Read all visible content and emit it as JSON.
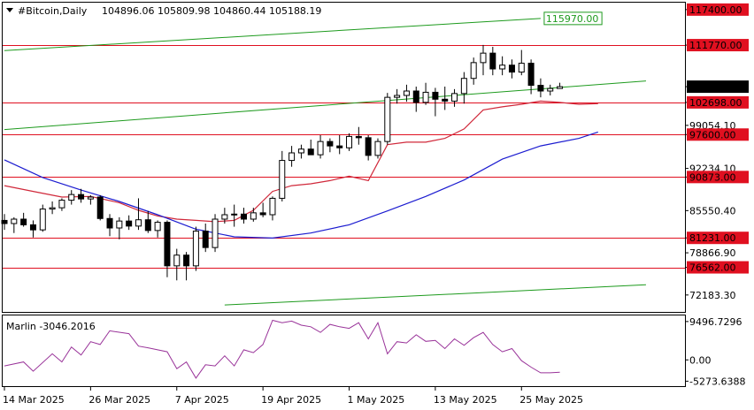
{
  "chart_data": [
    {
      "type": "candlestick",
      "title": "#Bitcoin,Daily",
      "ohlc_label": "104896.06 105809.98 104860.44 105188.19",
      "y_ticks": [
        "117400.00",
        "111770.00",
        "105188.19",
        "102698.00",
        "99054.10",
        "97600.00",
        "92234.10",
        "90873.00",
        "85550.40",
        "81231.00",
        "78866.90",
        "76562.00",
        "72183.30"
      ],
      "y_tick_values": [
        117400,
        111770,
        105188.19,
        102698,
        99054.1,
        97600,
        92234.1,
        90873,
        85550.4,
        81231,
        78866.9,
        76562,
        72183.3
      ],
      "ylim": [
        69500,
        118500
      ],
      "x_ticks": [
        "14 Mar 2025",
        "26 Mar 2025",
        "7 Apr 2025",
        "19 Apr 2025",
        "1 May 2025",
        "13 May 2025",
        "25 May 2025"
      ],
      "x_tick_index": [
        0,
        9,
        18,
        27,
        36,
        45,
        54
      ],
      "last_price": "105188.19",
      "horizontal_levels": [
        {
          "value": 111770,
          "label": "111770.00"
        },
        {
          "value": 102698,
          "label": "102698.00"
        },
        {
          "value": 97600,
          "label": "97600.00"
        },
        {
          "value": 90873,
          "label": "90873.00"
        },
        {
          "value": 81231,
          "label": "81231.00"
        },
        {
          "value": 76562,
          "label": "76562.00"
        }
      ],
      "channel_lines": [
        {
          "label": "115970.00",
          "start_index": 0,
          "start_value": 110900,
          "end_index": 56,
          "end_value": 116000
        },
        {
          "label": "",
          "start_index": 0,
          "start_value": 98400,
          "end_index": 67,
          "end_value": 106100
        },
        {
          "label": "",
          "start_index": 23,
          "start_value": 70600,
          "end_index": 67,
          "end_value": 73800
        }
      ],
      "series": [
        {
          "name": "",
          "color": "#d0283a",
          "points": [
            [
              0,
              89500
            ],
            [
              3,
              88600
            ],
            [
              6,
              87700
            ],
            [
              9,
              87800
            ],
            [
              12,
              86800
            ],
            [
              14,
              85600
            ],
            [
              16,
              84700
            ],
            [
              18,
              84200
            ],
            [
              20,
              84000
            ],
            [
              22,
              83800
            ],
            [
              24,
              84000
            ],
            [
              26,
              85600
            ],
            [
              28,
              88600
            ],
            [
              30,
              89500
            ],
            [
              32,
              89800
            ],
            [
              34,
              90300
            ],
            [
              36,
              91000
            ],
            [
              38,
              90300
            ],
            [
              40,
              96000
            ],
            [
              42,
              96400
            ],
            [
              44,
              96400
            ],
            [
              46,
              97000
            ],
            [
              48,
              98500
            ],
            [
              50,
              101500
            ],
            [
              52,
              102000
            ],
            [
              54,
              102400
            ],
            [
              56,
              102900
            ],
            [
              58,
              102700
            ],
            [
              60,
              102400
            ],
            [
              62,
              102500
            ]
          ]
        },
        {
          "name": "",
          "color": "#1c1cd0",
          "points": [
            [
              0,
              93600
            ],
            [
              4,
              90800
            ],
            [
              8,
              88800
            ],
            [
              12,
              87000
            ],
            [
              16,
              84900
            ],
            [
              20,
              82600
            ],
            [
              24,
              81400
            ],
            [
              28,
              81200
            ],
            [
              32,
              82000
            ],
            [
              36,
              83300
            ],
            [
              40,
              85500
            ],
            [
              44,
              87800
            ],
            [
              48,
              90400
            ],
            [
              52,
              93700
            ],
            [
              56,
              95800
            ],
            [
              60,
              97000
            ],
            [
              62,
              98000
            ]
          ]
        }
      ],
      "candles": [
        [
          84000,
          85000,
          82500,
          83500
        ],
        [
          83500,
          84500,
          82000,
          84200
        ],
        [
          84200,
          85200,
          83000,
          83300
        ],
        [
          83300,
          84000,
          81300,
          82500
        ],
        [
          82500,
          86500,
          82200,
          85800
        ],
        [
          85800,
          87000,
          85000,
          86000
        ],
        [
          86000,
          87500,
          85500,
          87200
        ],
        [
          87200,
          88800,
          86500,
          88100
        ],
        [
          88100,
          89000,
          86800,
          87400
        ],
        [
          87400,
          88000,
          86500,
          87700
        ],
        [
          87700,
          88000,
          84000,
          84300
        ],
        [
          84300,
          85000,
          81500,
          82800
        ],
        [
          82800,
          84500,
          81000,
          83900
        ],
        [
          83900,
          84800,
          82500,
          83100
        ],
        [
          83100,
          87500,
          82500,
          84100
        ],
        [
          84100,
          85500,
          82000,
          82400
        ],
        [
          82400,
          84000,
          81300,
          83700
        ],
        [
          83700,
          84000,
          75000,
          76800
        ],
        [
          76800,
          79500,
          74500,
          78500
        ],
        [
          78500,
          79000,
          74500,
          76800
        ],
        [
          76800,
          83000,
          76000,
          82300
        ],
        [
          82300,
          83500,
          79000,
          79700
        ],
        [
          79700,
          85000,
          79000,
          84200
        ],
        [
          84200,
          86000,
          83500,
          84900
        ],
        [
          84900,
          86500,
          83000,
          85000
        ],
        [
          85000,
          86000,
          83500,
          84200
        ],
        [
          84200,
          86000,
          83800,
          85200
        ],
        [
          85200,
          86800,
          84500,
          84900
        ],
        [
          84900,
          87800,
          84000,
          87500
        ],
        [
          87500,
          95000,
          87000,
          93500
        ],
        [
          93500,
          95800,
          92500,
          94700
        ],
        [
          94700,
          96000,
          93800,
          95300
        ],
        [
          95300,
          96800,
          94500,
          94400
        ],
        [
          94400,
          97500,
          93800,
          96500
        ],
        [
          96500,
          97000,
          94800,
          95800
        ],
        [
          95800,
          97500,
          94500,
          95500
        ],
        [
          95500,
          97800,
          95000,
          97300
        ],
        [
          97300,
          98800,
          96000,
          97100
        ],
        [
          97100,
          97500,
          93500,
          94300
        ],
        [
          94300,
          97000,
          93800,
          96500
        ],
        [
          96500,
          104200,
          96000,
          103500
        ],
        [
          103500,
          104800,
          102500,
          103800
        ],
        [
          103800,
          105500,
          102800,
          104500
        ],
        [
          104500,
          105200,
          101200,
          102700
        ],
        [
          102700,
          105800,
          102300,
          104300
        ],
        [
          104300,
          105000,
          100500,
          103200
        ],
        [
          103200,
          105200,
          101500,
          102900
        ],
        [
          102900,
          104800,
          102000,
          104100
        ],
        [
          104100,
          107500,
          102500,
          106500
        ],
        [
          106500,
          109800,
          105500,
          109000
        ],
        [
          109000,
          111800,
          107000,
          110500
        ],
        [
          110500,
          111500,
          107000,
          108000
        ],
        [
          108000,
          110000,
          107000,
          108600
        ],
        [
          108600,
          109500,
          106500,
          107500
        ],
        [
          107500,
          111000,
          107000,
          108900
        ],
        [
          108900,
          109500,
          104000,
          105400
        ],
        [
          105400,
          106500,
          103500,
          104500
        ],
        [
          104500,
          105500,
          103800,
          104900
        ],
        [
          104900,
          105810,
          104860,
          105188
        ]
      ]
    },
    {
      "type": "line",
      "title": "Marlin -3046.2016",
      "y_ticks": [
        "9496.7296",
        "0.00",
        "-5273.6388"
      ],
      "y_tick_values": [
        9496.7296,
        0,
        -5273.6388
      ],
      "ylim": [
        -6500,
        11000
      ],
      "series": [
        {
          "name": "",
          "color": "#993399",
          "points": [
            [
              0,
              -1500
            ],
            [
              2,
              -500
            ],
            [
              3,
              -2800
            ],
            [
              5,
              1500
            ],
            [
              6,
              -500
            ],
            [
              7,
              3200
            ],
            [
              8,
              1200
            ],
            [
              9,
              4500
            ],
            [
              10,
              3800
            ],
            [
              11,
              7200
            ],
            [
              13,
              6500
            ],
            [
              14,
              3400
            ],
            [
              15,
              3000
            ],
            [
              17,
              2000
            ],
            [
              18,
              -2200
            ],
            [
              19,
              -500
            ],
            [
              20,
              -4500
            ],
            [
              21,
              -1200
            ],
            [
              22,
              -1500
            ],
            [
              23,
              1000
            ],
            [
              24,
              -1500
            ],
            [
              25,
              2500
            ],
            [
              26,
              1800
            ],
            [
              27,
              3800
            ],
            [
              28,
              9800
            ],
            [
              29,
              9200
            ],
            [
              30,
              9600
            ],
            [
              31,
              8600
            ],
            [
              32,
              8200
            ],
            [
              33,
              6800
            ],
            [
              34,
              8800
            ],
            [
              35,
              8200
            ],
            [
              36,
              7800
            ],
            [
              37,
              9200
            ],
            [
              38,
              5200
            ],
            [
              39,
              9200
            ],
            [
              40,
              1500
            ],
            [
              41,
              4500
            ],
            [
              42,
              4200
            ],
            [
              43,
              6200
            ],
            [
              44,
              4600
            ],
            [
              45,
              4800
            ],
            [
              46,
              2800
            ],
            [
              47,
              5200
            ],
            [
              48,
              3600
            ],
            [
              49,
              5500
            ],
            [
              50,
              6800
            ],
            [
              51,
              3800
            ],
            [
              52,
              2000
            ],
            [
              53,
              2800
            ],
            [
              54,
              -200
            ],
            [
              55,
              -1800
            ],
            [
              56,
              -3200
            ],
            [
              57,
              -3200
            ],
            [
              58,
              -3046
            ]
          ]
        }
      ]
    }
  ]
}
